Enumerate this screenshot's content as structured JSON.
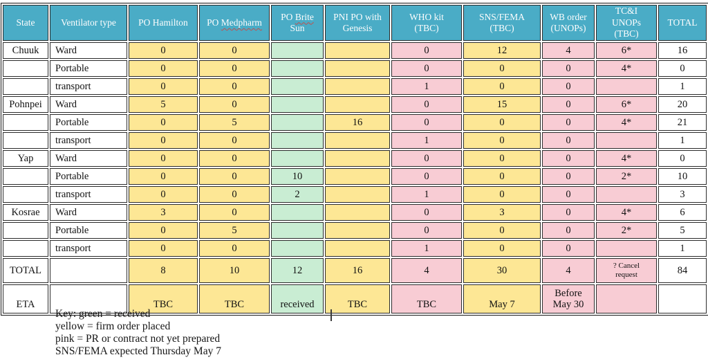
{
  "colors": {
    "header_bg": "#4aacc6",
    "header_text": "#fdfdfd",
    "received_green": "#c9edd3",
    "firm_order_yellow": "#fde795",
    "not_prepared_pink": "#f8ccd4",
    "squiggle_red": "#c0504d"
  },
  "table": {
    "headers": [
      {
        "lines": [
          "State"
        ]
      },
      {
        "lines": [
          "Ventilator type"
        ]
      },
      {
        "lines": [
          "PO Hamilton"
        ]
      },
      {
        "lines": [
          "PO Medpharm"
        ],
        "misspelled": "Medpharm"
      },
      {
        "lines": [
          "PO Brite",
          "Sun"
        ],
        "misspelled": "Brite"
      },
      {
        "lines": [
          "PNI PO with",
          "Genesis"
        ]
      },
      {
        "lines": [
          "WHO kit",
          "(TBC)"
        ]
      },
      {
        "lines": [
          "SNS/FEMA",
          "(TBC)"
        ]
      },
      {
        "lines": [
          "WB order",
          "(UNOPs)"
        ]
      },
      {
        "lines": [
          "TC&I",
          "UNOPs",
          "(TBC)"
        ]
      },
      {
        "lines": [
          "TOTAL"
        ]
      }
    ],
    "rows": [
      {
        "kind": "data",
        "cells": [
          {
            "t": "Chuuk",
            "c": "w"
          },
          {
            "t": "Ward",
            "c": "w"
          },
          {
            "t": "0",
            "c": "y"
          },
          {
            "t": "0",
            "c": "y"
          },
          {
            "t": "",
            "c": "g"
          },
          {
            "t": "",
            "c": "y"
          },
          {
            "t": "0",
            "c": "p"
          },
          {
            "t": "12",
            "c": "y"
          },
          {
            "t": "4",
            "c": "p"
          },
          {
            "t": "6*",
            "c": "p"
          },
          {
            "t": "16",
            "c": "w"
          }
        ]
      },
      {
        "kind": "data",
        "cells": [
          {
            "t": "",
            "c": "w"
          },
          {
            "t": "Portable",
            "c": "w"
          },
          {
            "t": "0",
            "c": "y"
          },
          {
            "t": "0",
            "c": "y"
          },
          {
            "t": "",
            "c": "g"
          },
          {
            "t": "",
            "c": "y"
          },
          {
            "t": "0",
            "c": "p"
          },
          {
            "t": "0",
            "c": "y"
          },
          {
            "t": "0",
            "c": "p"
          },
          {
            "t": "4*",
            "c": "p"
          },
          {
            "t": "0",
            "c": "w"
          }
        ]
      },
      {
        "kind": "data",
        "cells": [
          {
            "t": "",
            "c": "w"
          },
          {
            "t": "transport",
            "c": "w"
          },
          {
            "t": "0",
            "c": "y"
          },
          {
            "t": "0",
            "c": "y"
          },
          {
            "t": "",
            "c": "g"
          },
          {
            "t": "",
            "c": "y"
          },
          {
            "t": "1",
            "c": "p"
          },
          {
            "t": "0",
            "c": "y"
          },
          {
            "t": "0",
            "c": "p"
          },
          {
            "t": "",
            "c": "p"
          },
          {
            "t": "1",
            "c": "w"
          }
        ]
      },
      {
        "kind": "data",
        "cells": [
          {
            "t": "Pohnpei",
            "c": "w"
          },
          {
            "t": "Ward",
            "c": "w"
          },
          {
            "t": "5",
            "c": "y"
          },
          {
            "t": "0",
            "c": "y"
          },
          {
            "t": "",
            "c": "g"
          },
          {
            "t": "",
            "c": "y"
          },
          {
            "t": "0",
            "c": "p"
          },
          {
            "t": "15",
            "c": "y"
          },
          {
            "t": "0",
            "c": "p"
          },
          {
            "t": "6*",
            "c": "p"
          },
          {
            "t": "20",
            "c": "w"
          }
        ]
      },
      {
        "kind": "data",
        "cells": [
          {
            "t": "",
            "c": "w"
          },
          {
            "t": "Portable",
            "c": "w"
          },
          {
            "t": "0",
            "c": "y"
          },
          {
            "t": "5",
            "c": "y"
          },
          {
            "t": "",
            "c": "g"
          },
          {
            "t": "16",
            "c": "y"
          },
          {
            "t": "0",
            "c": "p"
          },
          {
            "t": "0",
            "c": "y"
          },
          {
            "t": "0",
            "c": "p"
          },
          {
            "t": "4*",
            "c": "p"
          },
          {
            "t": "21",
            "c": "w"
          }
        ]
      },
      {
        "kind": "data",
        "cells": [
          {
            "t": "",
            "c": "w"
          },
          {
            "t": "transport",
            "c": "w"
          },
          {
            "t": "0",
            "c": "y"
          },
          {
            "t": "0",
            "c": "y"
          },
          {
            "t": "",
            "c": "g"
          },
          {
            "t": "",
            "c": "y"
          },
          {
            "t": "1",
            "c": "p"
          },
          {
            "t": "0",
            "c": "y"
          },
          {
            "t": "0",
            "c": "p"
          },
          {
            "t": "",
            "c": "p"
          },
          {
            "t": "1",
            "c": "w"
          }
        ]
      },
      {
        "kind": "data",
        "cells": [
          {
            "t": "Yap",
            "c": "w"
          },
          {
            "t": "Ward",
            "c": "w"
          },
          {
            "t": "0",
            "c": "y"
          },
          {
            "t": "0",
            "c": "y"
          },
          {
            "t": "",
            "c": "g"
          },
          {
            "t": "",
            "c": "y"
          },
          {
            "t": "0",
            "c": "p"
          },
          {
            "t": "0",
            "c": "y"
          },
          {
            "t": "0",
            "c": "p"
          },
          {
            "t": "4*",
            "c": "p"
          },
          {
            "t": "0",
            "c": "w"
          }
        ]
      },
      {
        "kind": "data",
        "cells": [
          {
            "t": "",
            "c": "w"
          },
          {
            "t": "Portable",
            "c": "w"
          },
          {
            "t": "0",
            "c": "y"
          },
          {
            "t": "0",
            "c": "y"
          },
          {
            "t": "10",
            "c": "g"
          },
          {
            "t": "",
            "c": "y"
          },
          {
            "t": "0",
            "c": "p"
          },
          {
            "t": "0",
            "c": "y"
          },
          {
            "t": "0",
            "c": "p"
          },
          {
            "t": "2*",
            "c": "p"
          },
          {
            "t": "10",
            "c": "w"
          }
        ]
      },
      {
        "kind": "data",
        "cells": [
          {
            "t": "",
            "c": "w"
          },
          {
            "t": "transport",
            "c": "w"
          },
          {
            "t": "0",
            "c": "y"
          },
          {
            "t": "0",
            "c": "y"
          },
          {
            "t": "2",
            "c": "g"
          },
          {
            "t": "",
            "c": "y"
          },
          {
            "t": "1",
            "c": "p"
          },
          {
            "t": "0",
            "c": "y"
          },
          {
            "t": "0",
            "c": "p"
          },
          {
            "t": "",
            "c": "p"
          },
          {
            "t": "3",
            "c": "w"
          }
        ]
      },
      {
        "kind": "data",
        "cells": [
          {
            "t": "Kosrae",
            "c": "w"
          },
          {
            "t": "Ward",
            "c": "w"
          },
          {
            "t": "3",
            "c": "y"
          },
          {
            "t": "0",
            "c": "y"
          },
          {
            "t": "",
            "c": "g"
          },
          {
            "t": "",
            "c": "y"
          },
          {
            "t": "0",
            "c": "p"
          },
          {
            "t": "3",
            "c": "y"
          },
          {
            "t": "0",
            "c": "p"
          },
          {
            "t": "4*",
            "c": "p"
          },
          {
            "t": "6",
            "c": "w"
          }
        ]
      },
      {
        "kind": "data",
        "cells": [
          {
            "t": "",
            "c": "w"
          },
          {
            "t": "Portable",
            "c": "w"
          },
          {
            "t": "0",
            "c": "y"
          },
          {
            "t": "5",
            "c": "y"
          },
          {
            "t": "",
            "c": "g"
          },
          {
            "t": "",
            "c": "y"
          },
          {
            "t": "0",
            "c": "p"
          },
          {
            "t": "0",
            "c": "y"
          },
          {
            "t": "0",
            "c": "p"
          },
          {
            "t": "2*",
            "c": "p"
          },
          {
            "t": "5",
            "c": "w"
          }
        ]
      },
      {
        "kind": "data",
        "cells": [
          {
            "t": "",
            "c": "w"
          },
          {
            "t": "transport",
            "c": "w"
          },
          {
            "t": "0",
            "c": "y"
          },
          {
            "t": "0",
            "c": "y"
          },
          {
            "t": "",
            "c": "g"
          },
          {
            "t": "",
            "c": "y"
          },
          {
            "t": "1",
            "c": "p"
          },
          {
            "t": "0",
            "c": "y"
          },
          {
            "t": "0",
            "c": "p"
          },
          {
            "t": "",
            "c": "p"
          },
          {
            "t": "1",
            "c": "w"
          }
        ]
      },
      {
        "kind": "total",
        "cells": [
          {
            "t": "TOTAL",
            "c": "w"
          },
          {
            "t": "",
            "c": "w"
          },
          {
            "t": "8",
            "c": "y"
          },
          {
            "t": "10",
            "c": "y"
          },
          {
            "t": "12",
            "c": "g"
          },
          {
            "t": "16",
            "c": "y"
          },
          {
            "t": "4",
            "c": "p"
          },
          {
            "t": "30",
            "c": "y"
          },
          {
            "t": "4",
            "c": "p"
          },
          {
            "t": "? Cancel\nrequest",
            "c": "p",
            "small": true
          },
          {
            "t": "84",
            "c": "w"
          }
        ]
      },
      {
        "kind": "eta",
        "cells": [
          {
            "t": "ETA",
            "c": "w"
          },
          {
            "t": "",
            "c": "w"
          },
          {
            "t": "TBC",
            "c": "y"
          },
          {
            "t": "TBC",
            "c": "y"
          },
          {
            "t": "received",
            "c": "g"
          },
          {
            "t": "TBC",
            "c": "y"
          },
          {
            "t": "TBC",
            "c": "p"
          },
          {
            "t": "May 7",
            "c": "y"
          },
          {
            "t": "Before\nMay 30",
            "c": "p"
          },
          {
            "t": "",
            "c": "p"
          },
          {
            "t": "",
            "c": "w"
          }
        ]
      }
    ]
  },
  "key": {
    "lines": [
      "Key: green = received",
      "yellow = firm order placed",
      "pink = PR or contract not yet prepared",
      "SNS/FEMA expected Thursday May 7"
    ]
  }
}
